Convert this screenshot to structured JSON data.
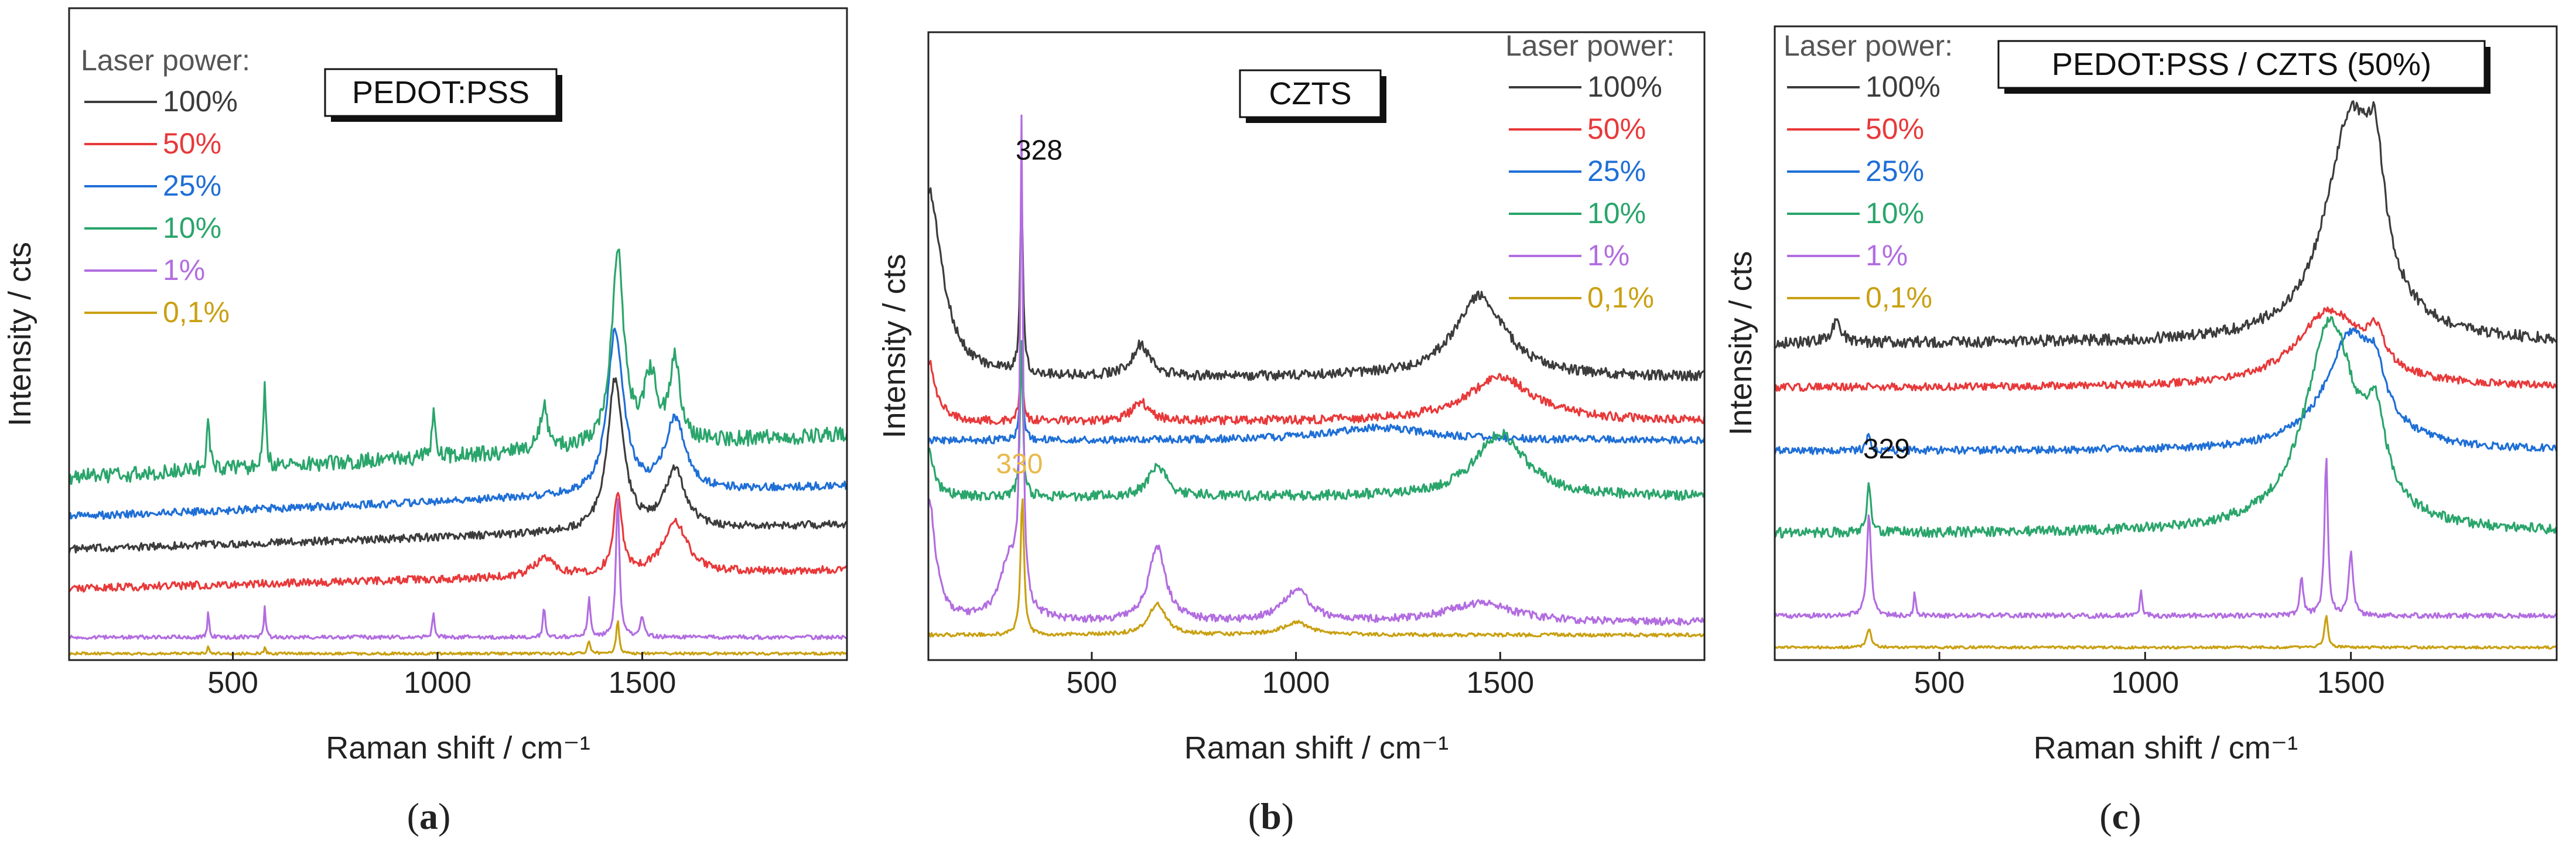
{
  "chart_data": [
    {
      "type": "line",
      "panel_label": "a",
      "title": "PEDOT:PSS",
      "xlabel": "Raman shift / cm⁻¹",
      "ylabel": "Intensity / cts",
      "xlim": [
        100,
        2000
      ],
      "ylim": [
        0,
        100
      ],
      "xticks": [
        500,
        1000,
        1500
      ],
      "yticks_shown": false,
      "legend_title": "Laser power:",
      "legend_position": "top-left",
      "series": [
        {
          "name": "100%",
          "color": "#3c3c3c",
          "baseline": 17,
          "slope": 0.2,
          "peaks": [
            [
              1430,
              40,
              14
            ],
            [
              1580,
              60,
              9
            ],
            [
              1440,
              50,
              10
            ]
          ],
          "noise": 0.6
        },
        {
          "name": "50%",
          "color": "#e8393a",
          "baseline": 11,
          "slope": 0.15,
          "peaks": [
            [
              1440,
              25,
              12
            ],
            [
              1580,
              70,
              8
            ],
            [
              1262,
              60,
              3
            ]
          ],
          "noise": 0.6
        },
        {
          "name": "25%",
          "color": "#1f6fd6",
          "baseline": 22,
          "slope": 0.25,
          "peaks": [
            [
              1430,
              40,
              14
            ],
            [
              1580,
              60,
              11
            ],
            [
              1440,
              50,
              12
            ]
          ],
          "noise": 0.6
        },
        {
          "name": "10%",
          "color": "#2aa56b",
          "baseline": 28,
          "slope": 0.35,
          "peaks": [
            [
              1440,
              35,
              30
            ],
            [
              1260,
              20,
              7
            ],
            [
              1520,
              40,
              10
            ],
            [
              1580,
              30,
              12
            ],
            [
              440,
              8,
              8
            ],
            [
              578,
              8,
              12
            ],
            [
              990,
              8,
              8
            ]
          ],
          "noise": 1.2
        },
        {
          "name": "1%",
          "color": "#b26de0",
          "baseline": 3.5,
          "slope": 0.0,
          "peaks": [
            [
              1440,
              10,
              22
            ],
            [
              440,
              5,
              4
            ],
            [
              578,
              5,
              5
            ],
            [
              990,
              6,
              4
            ],
            [
              1260,
              6,
              5
            ],
            [
              1370,
              8,
              6
            ],
            [
              1500,
              12,
              3
            ]
          ],
          "noise": 0.3
        },
        {
          "name": "0,1%",
          "color": "#c9a012",
          "baseline": 1,
          "slope": 0.0,
          "peaks": [
            [
              1440,
              8,
              5
            ],
            [
              440,
              5,
              1
            ],
            [
              578,
              5,
              1
            ],
            [
              1370,
              8,
              2
            ]
          ],
          "noise": 0.2
        }
      ]
    },
    {
      "type": "line",
      "panel_label": "b",
      "title": "CZTS",
      "xlabel": "Raman shift / cm⁻¹",
      "ylabel": "Intensity / cts",
      "xlim": [
        100,
        2000
      ],
      "ylim": [
        0,
        100
      ],
      "xticks": [
        500,
        1000,
        1500
      ],
      "yticks_shown": false,
      "legend_title": "Laser power:",
      "legend_position": "top-right",
      "annotations": [
        {
          "text": "328",
          "x": 328,
          "series": "100%"
        },
        {
          "text": "330",
          "x": 330,
          "series": "0,1%"
        }
      ],
      "series": [
        {
          "name": "100%",
          "color": "#3c3c3c",
          "baseline": 45,
          "slope": 0.0,
          "peaks": [
            [
              328,
              8,
              30
            ],
            [
              620,
              50,
              5
            ],
            [
              1450,
              150,
              13
            ],
            [
              100,
              80,
              30
            ]
          ],
          "noise": 0.8
        },
        {
          "name": "50%",
          "color": "#e8393a",
          "baseline": 38,
          "slope": 0.0,
          "peaks": [
            [
              328,
              8,
              12
            ],
            [
              620,
              50,
              3
            ],
            [
              1500,
              200,
              7
            ],
            [
              100,
              40,
              10
            ]
          ],
          "noise": 0.7
        },
        {
          "name": "25%",
          "color": "#1f6fd6",
          "baseline": 35,
          "slope": 0.0,
          "peaks": [
            [
              328,
              8,
              14
            ],
            [
              1200,
              300,
              2
            ]
          ],
          "noise": 0.6
        },
        {
          "name": "10%",
          "color": "#2aa56b",
          "baseline": 26,
          "slope": 0.0,
          "peaks": [
            [
              328,
              8,
              25
            ],
            [
              660,
              50,
              5
            ],
            [
              1500,
              150,
              10
            ],
            [
              100,
              30,
              8
            ]
          ],
          "noise": 0.8
        },
        {
          "name": "1%",
          "color": "#b26de0",
          "baseline": 6,
          "slope": 0.0,
          "peaks": [
            [
              328,
              8,
              75
            ],
            [
              300,
              60,
              10
            ],
            [
              660,
              50,
              12
            ],
            [
              1000,
              80,
              5
            ],
            [
              1450,
              200,
              3
            ],
            [
              100,
              40,
              20
            ]
          ],
          "noise": 0.6
        },
        {
          "name": "0,1%",
          "color": "#c9a012",
          "baseline": 4,
          "slope": 0.0,
          "peaks": [
            [
              330,
              10,
              22
            ],
            [
              660,
              50,
              5
            ],
            [
              1000,
              80,
              2
            ]
          ],
          "noise": 0.3
        }
      ]
    },
    {
      "type": "line",
      "panel_label": "c",
      "title": "PEDOT:PSS / CZTS (50%)",
      "xlabel": "Raman shift / cm⁻¹",
      "ylabel": "Intensity / cts",
      "xlim": [
        100,
        2000
      ],
      "ylim": [
        0,
        100
      ],
      "xticks": [
        500,
        1000,
        1500
      ],
      "yticks_shown": false,
      "legend_title": "Laser power:",
      "legend_position": "top-left",
      "annotations": [
        {
          "text": "329",
          "x": 329,
          "series": "10%"
        }
      ],
      "series": [
        {
          "name": "100%",
          "color": "#3c3c3c",
          "baseline": 50,
          "slope": 0.0,
          "peaks": [
            [
              1500,
              150,
              35
            ],
            [
              1560,
              50,
              15
            ],
            [
              250,
              30,
              3
            ]
          ],
          "noise": 0.9
        },
        {
          "name": "50%",
          "color": "#e8393a",
          "baseline": 43,
          "slope": 0.0,
          "peaks": [
            [
              1450,
              200,
              12
            ],
            [
              1560,
              50,
              5
            ]
          ],
          "noise": 0.6
        },
        {
          "name": "25%",
          "color": "#1f6fd6",
          "baseline": 33,
          "slope": 0.0,
          "peaks": [
            [
              1500,
              150,
              18
            ],
            [
              1560,
              50,
              6
            ],
            [
              329,
              10,
              3
            ]
          ],
          "noise": 0.6
        },
        {
          "name": "10%",
          "color": "#2aa56b",
          "baseline": 20,
          "slope": 0.0,
          "peaks": [
            [
              1450,
              150,
              33
            ],
            [
              1560,
              60,
              12
            ],
            [
              329,
              10,
              8
            ]
          ],
          "noise": 0.8
        },
        {
          "name": "1%",
          "color": "#b26de0",
          "baseline": 7,
          "slope": 0.0,
          "peaks": [
            [
              329,
              12,
              16
            ],
            [
              1440,
              10,
              25
            ],
            [
              1500,
              12,
              10
            ],
            [
              1380,
              10,
              6
            ],
            [
              440,
              5,
              4
            ],
            [
              990,
              6,
              4
            ]
          ],
          "noise": 0.4
        },
        {
          "name": "0,1%",
          "color": "#c9a012",
          "baseline": 2,
          "slope": 0.0,
          "peaks": [
            [
              329,
              12,
              3
            ],
            [
              1440,
              10,
              5
            ]
          ],
          "noise": 0.2
        }
      ]
    }
  ]
}
